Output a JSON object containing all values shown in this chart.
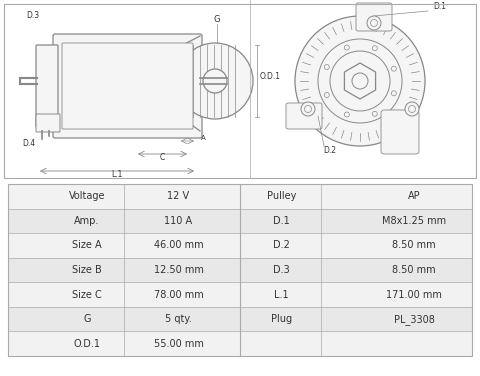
{
  "table_left_labels": [
    "Voltage",
    "Amp.",
    "Size A",
    "Size B",
    "Size C",
    "G",
    "O.D.1"
  ],
  "table_left_values": [
    "12 V",
    "110 A",
    "46.00 mm",
    "12.50 mm",
    "78.00 mm",
    "5 qty.",
    "55.00 mm"
  ],
  "table_right_labels": [
    "Pulley",
    "D.1",
    "D.2",
    "D.3",
    "L.1",
    "Plug",
    ""
  ],
  "table_right_values": [
    "AP",
    "M8x1.25 mm",
    "8.50 mm",
    "8.50 mm",
    "171.00 mm",
    "PL_3308",
    ""
  ],
  "bg_color": "#ffffff",
  "table_header_bg": "#d9d9d9",
  "table_row_bg1": "#f2f2f2",
  "table_row_bg2": "#e8e8e8",
  "table_border_color": "#aaaaaa",
  "text_color": "#333333",
  "diagram_color": "#888888",
  "diagram_bg": "#f5f5f5"
}
